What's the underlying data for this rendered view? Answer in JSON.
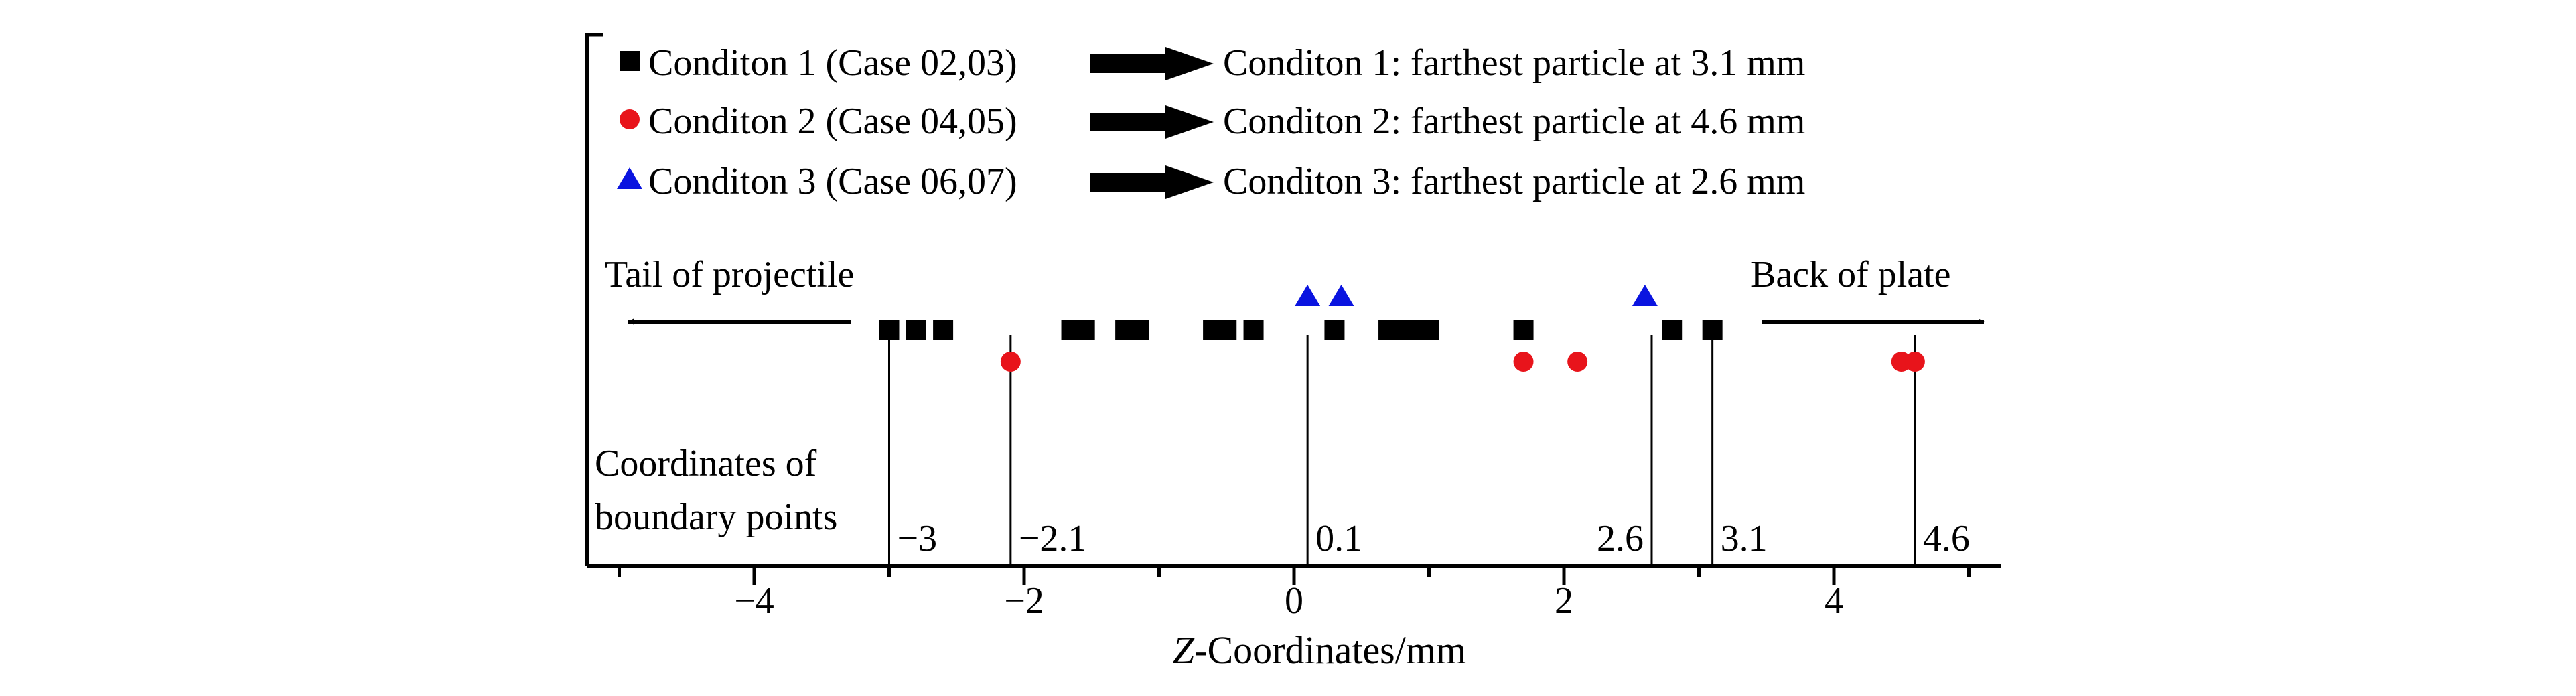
{
  "chart_data": {
    "type": "scatter",
    "title": "",
    "xlabel_italic": "Z",
    "xlabel_rest": "-Coordinates/mm",
    "ylabel": "",
    "xlim": [
      -5.2,
      5.3
    ],
    "x_ticks": [
      -4,
      -2,
      0,
      2,
      4
    ],
    "x_tick_labels": [
      "−4",
      "−2",
      "0",
      "2",
      "4"
    ],
    "grid": false,
    "legend_position": "top-left",
    "series": [
      {
        "name": "Conditon 1 (Case 02,03)",
        "result": "Conditon 1: farthest particle at 3.1 mm",
        "marker": "square",
        "color": "#000000",
        "x": [
          -3.0,
          -2.8,
          -2.6,
          -1.65,
          -1.55,
          -1.25,
          -1.15,
          -0.6,
          -0.5,
          -0.3,
          0.3,
          0.7,
          0.8,
          0.9,
          1.0,
          1.7,
          2.8,
          3.1
        ]
      },
      {
        "name": "Conditon 2 (Case 04,05)",
        "result": "Conditon 2: farthest particle at 4.6 mm",
        "marker": "circle",
        "color": "#e8141b",
        "x": [
          -2.1,
          1.7,
          2.1,
          4.5,
          4.6
        ]
      },
      {
        "name": "Conditon 3 (Case 06,07)",
        "result": "Conditon 3: farthest particle at 2.6 mm",
        "marker": "triangle",
        "color": "#0a14e0",
        "x": [
          0.1,
          0.35,
          2.6
        ]
      }
    ],
    "boundary_title": [
      "Coordinates of",
      "boundary points"
    ],
    "boundary_points": [
      {
        "x": -3.0,
        "label": "−3"
      },
      {
        "x": -2.1,
        "label": "−2.1"
      },
      {
        "x": 0.1,
        "label": "0.1"
      },
      {
        "x": 2.65,
        "label": "2.6"
      },
      {
        "x": 3.1,
        "label": "3.1"
      },
      {
        "x": 4.6,
        "label": "4.6"
      }
    ],
    "annotations": {
      "left_arrow": "Tail of projectile",
      "right_arrow": "Back of plate"
    }
  }
}
